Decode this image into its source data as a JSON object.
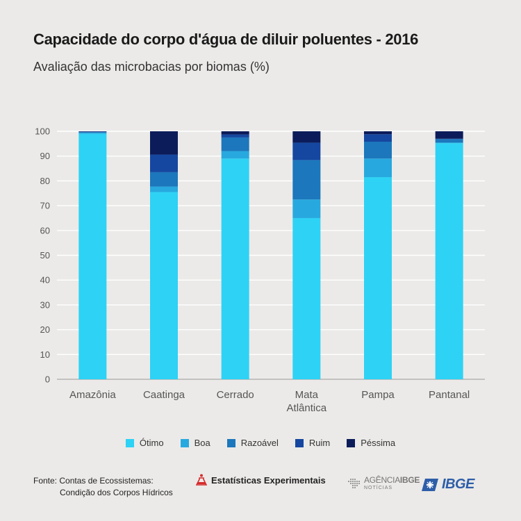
{
  "header": {
    "title": "Capacidade do corpo d'água de diluir poluentes - 2016",
    "subtitle": "Avaliação das microbacias por biomas (%)"
  },
  "chart_data": {
    "type": "bar",
    "stacked": true,
    "categories": [
      "Amazônia",
      "Caatinga",
      "Cerrado",
      "Mata Atlântica",
      "Pampa",
      "Pantanal"
    ],
    "category_lines": [
      [
        "Amazônia"
      ],
      [
        "Caatinga"
      ],
      [
        "Cerrado"
      ],
      [
        "Mata",
        "Atlântica"
      ],
      [
        "Pampa"
      ],
      [
        "Pantanal"
      ]
    ],
    "series": [
      {
        "name": "Ótimo",
        "color": "#2ed2f5",
        "values": [
          99.0,
          75.5,
          89.0,
          65.0,
          81.5,
          95.2
        ]
      },
      {
        "name": "Boa",
        "color": "#27a9df",
        "values": [
          0.4,
          2.2,
          3.0,
          7.5,
          7.5,
          0.3
        ]
      },
      {
        "name": "Razoável",
        "color": "#1c77bc",
        "values": [
          0.3,
          5.8,
          5.5,
          15.9,
          6.8,
          1.4
        ]
      },
      {
        "name": "Ruim",
        "color": "#1547a0",
        "values": [
          0.2,
          7.1,
          1.2,
          7.0,
          3.0,
          0.1
        ]
      },
      {
        "name": "Péssima",
        "color": "#0c1c5a",
        "values": [
          0.1,
          9.4,
          1.3,
          4.6,
          1.2,
          3.0
        ]
      }
    ],
    "yticks": [
      0,
      10,
      20,
      30,
      40,
      50,
      60,
      70,
      80,
      90,
      100
    ],
    "ylim": [
      0,
      100
    ],
    "grid": true,
    "legend_position": "bottom"
  },
  "footer": {
    "source_line1": "Fonte: Contas de Ecossistemas:",
    "source_line2": "Condição dos Corpos Hídricos",
    "logo_experimental": "Estatísticas Experimentais",
    "logo_agencia_a": "AGÊNCIA",
    "logo_agencia_b": "IBGE",
    "logo_agencia_sub": "NOTÍCIAS",
    "logo_ibge": "IBGE"
  }
}
